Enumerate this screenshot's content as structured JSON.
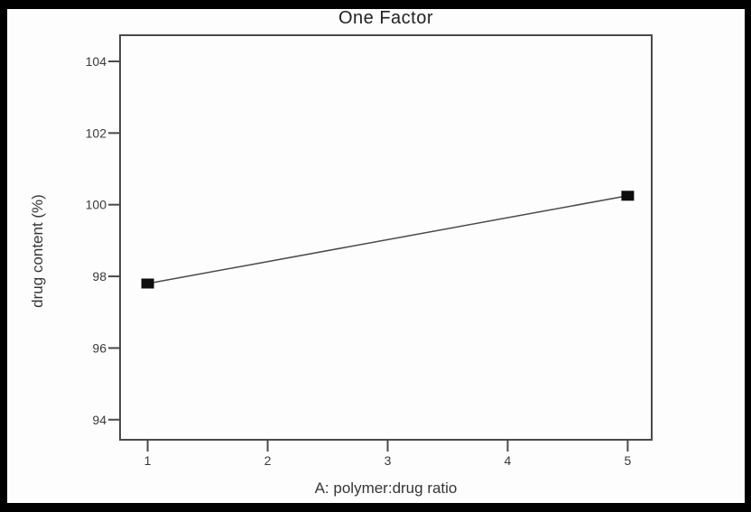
{
  "figure": {
    "title": "One Factor"
  },
  "chart_data": {
    "type": "line",
    "title": "One Factor",
    "xlabel": "A: polymer:drug ratio",
    "ylabel": "drug content (%)",
    "x": [
      1,
      5
    ],
    "y": [
      97.8,
      100.25
    ],
    "xticks": [
      1,
      2,
      3,
      4,
      5
    ],
    "yticks": [
      94,
      96,
      98,
      100,
      102,
      104
    ],
    "xlim": [
      0.77,
      5.2
    ],
    "ylim": [
      93.44,
      104.73
    ],
    "grid": false,
    "legend_position": "none",
    "marker": "filled-square",
    "colors": {
      "line": "#4a4a4a",
      "marker": "#0d0d0d",
      "axis": "#4a4a4a",
      "tick_text": "#3a3a3a",
      "title_text": "#222222",
      "outer_frame": "#000000",
      "canvas": "#fdfdfd"
    }
  }
}
